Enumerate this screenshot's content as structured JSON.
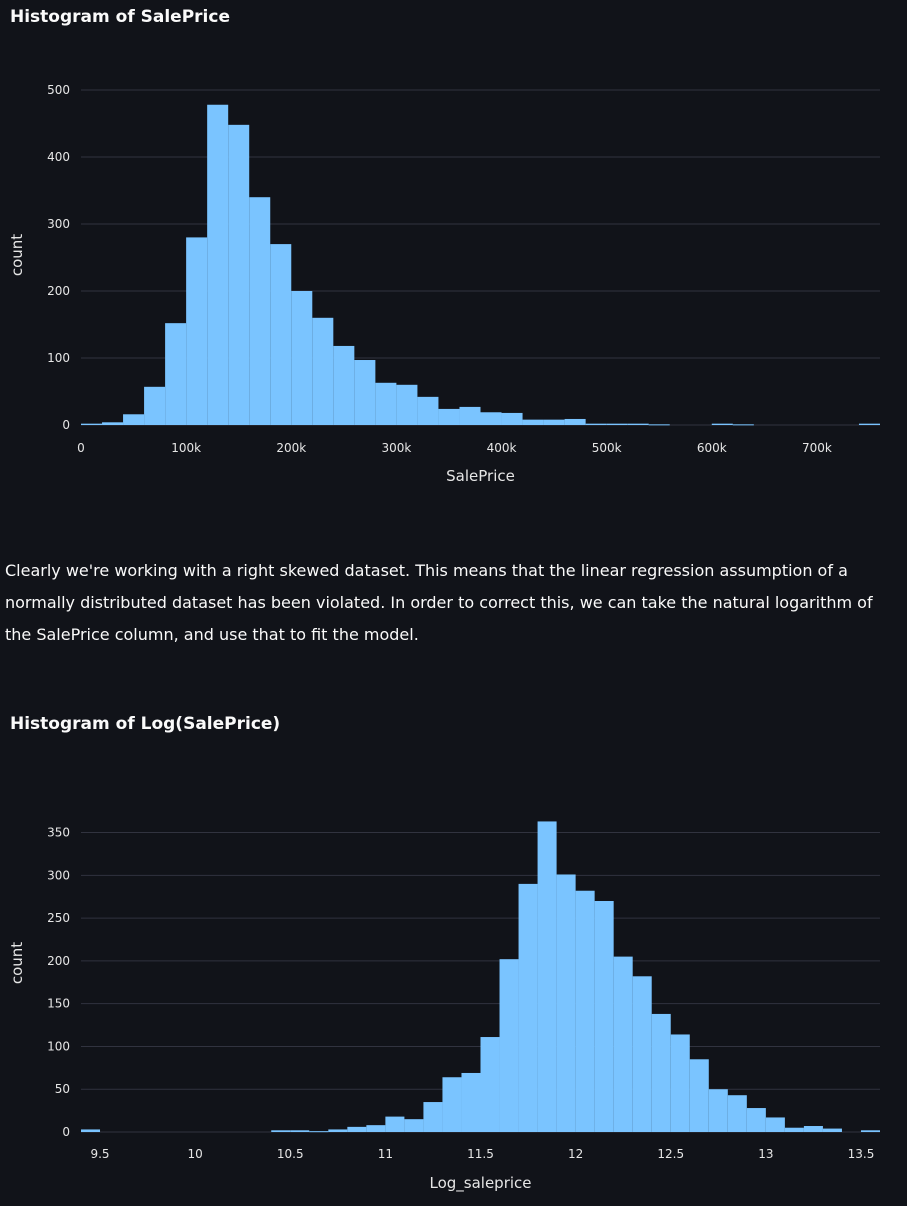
{
  "chart_data": [
    {
      "type": "bar",
      "title": "Histogram of SalePrice",
      "xlabel": "SalePrice",
      "ylabel": "count",
      "xlim": [
        0,
        760000
      ],
      "ylim": [
        0,
        500
      ],
      "grid": true,
      "color": "#7ac4ff",
      "bin_width": 20000,
      "bins_start": [
        0,
        20000,
        40000,
        60000,
        80000,
        100000,
        120000,
        140000,
        160000,
        180000,
        200000,
        220000,
        240000,
        260000,
        280000,
        300000,
        320000,
        340000,
        360000,
        380000,
        400000,
        420000,
        440000,
        460000,
        480000,
        500000,
        520000,
        540000,
        560000,
        580000,
        600000,
        620000,
        640000,
        660000,
        680000,
        700000,
        720000,
        740000
      ],
      "values": [
        2,
        4,
        16,
        57,
        152,
        280,
        478,
        448,
        340,
        270,
        200,
        160,
        118,
        97,
        63,
        60,
        42,
        24,
        27,
        19,
        18,
        8,
        8,
        9,
        2,
        2,
        2,
        1,
        0,
        0,
        2,
        1,
        0,
        0,
        0,
        0,
        0,
        2
      ],
      "x_ticks": [
        0,
        100000,
        200000,
        300000,
        400000,
        500000,
        600000,
        700000
      ],
      "x_tick_labels": [
        "0",
        "100k",
        "200k",
        "300k",
        "400k",
        "500k",
        "600k",
        "700k"
      ],
      "y_ticks": [
        0,
        100,
        200,
        300,
        400,
        500
      ],
      "y_tick_labels": [
        "0",
        "100",
        "200",
        "300",
        "400",
        "500"
      ]
    },
    {
      "type": "bar",
      "title": "Histogram of Log(SalePrice)",
      "xlabel": "Log_saleprice",
      "ylabel": "count",
      "xlim": [
        9.4,
        13.6
      ],
      "ylim": [
        0,
        360
      ],
      "grid": true,
      "color": "#7ac4ff",
      "bin_width": 0.1,
      "bins_start": [
        9.4,
        9.5,
        9.6,
        9.7,
        9.8,
        9.9,
        10.0,
        10.1,
        10.2,
        10.3,
        10.4,
        10.5,
        10.6,
        10.7,
        10.8,
        10.9,
        11.0,
        11.1,
        11.2,
        11.3,
        11.4,
        11.5,
        11.6,
        11.7,
        11.8,
        11.9,
        12.0,
        12.1,
        12.2,
        12.3,
        12.4,
        12.5,
        12.6,
        12.7,
        12.8,
        12.9,
        13.0,
        13.1,
        13.2,
        13.3,
        13.4,
        13.5
      ],
      "values": [
        3,
        0,
        0,
        0,
        0,
        0,
        0,
        0,
        0,
        0,
        2,
        2,
        1,
        3,
        6,
        8,
        18,
        15,
        35,
        64,
        69,
        111,
        202,
        290,
        363,
        301,
        282,
        270,
        205,
        182,
        138,
        114,
        85,
        50,
        43,
        28,
        17,
        5,
        7,
        4,
        0,
        2
      ],
      "x_ticks": [
        9.5,
        10,
        10.5,
        11,
        11.5,
        12,
        12.5,
        13,
        13.5
      ],
      "x_tick_labels": [
        "9.5",
        "10",
        "10.5",
        "11",
        "11.5",
        "12",
        "12.5",
        "13",
        "13.5"
      ],
      "y_ticks": [
        0,
        50,
        100,
        150,
        200,
        250,
        300,
        350
      ],
      "y_tick_labels": [
        "0",
        "50",
        "100",
        "150",
        "200",
        "250",
        "300",
        "350"
      ]
    }
  ],
  "paragraph": "Clearly we're working with a right skewed dataset. This means that the linear regression assumption of a normally distributed dataset has been violated. In order to correct this, we can take the natural logarithm of the SalePrice column, and use that to fit the model."
}
